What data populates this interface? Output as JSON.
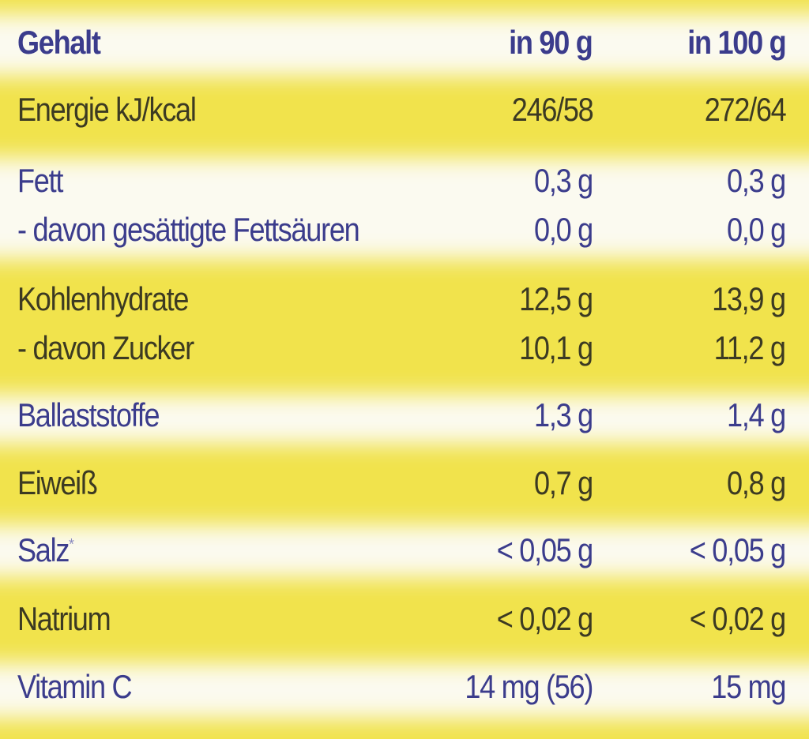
{
  "header": {
    "label": "Gehalt",
    "col1": "in 90 g",
    "col2": "in 100 g"
  },
  "rows": [
    {
      "label": "Energie kJ/kcal",
      "col1": "246/58",
      "col2": "272/64"
    },
    {
      "label": "Fett",
      "col1": "0,3 g",
      "col2": "0,3 g"
    },
    {
      "label": "- davon gesättigte Fettsäuren",
      "col1": "0,0 g",
      "col2": "0,0 g"
    },
    {
      "label": "Kohlenhydrate",
      "col1": "12,5 g",
      "col2": "13,9 g"
    },
    {
      "label": "- davon Zucker",
      "col1": "10,1 g",
      "col2": "11,2 g"
    },
    {
      "label": "Ballaststoffe",
      "col1": "1,3 g",
      "col2": "1,4 g"
    },
    {
      "label": "Eiweiß",
      "col1": "0,7 g",
      "col2": "0,8 g"
    },
    {
      "label": "Salz",
      "marker": "*",
      "col1": "< 0,05 g",
      "col2": "< 0,05 g"
    },
    {
      "label": "Natrium",
      "col1": "< 0,02 g",
      "col2": "< 0,02 g"
    },
    {
      "label": "Vitamin C",
      "col1": "14 mg (56)",
      "col2": "15 mg"
    }
  ],
  "colors": {
    "yellow": "#f1e34c",
    "white": "#fbfaf0",
    "blue_text": "#3b3c8c",
    "dark_text": "#3c3a22"
  }
}
